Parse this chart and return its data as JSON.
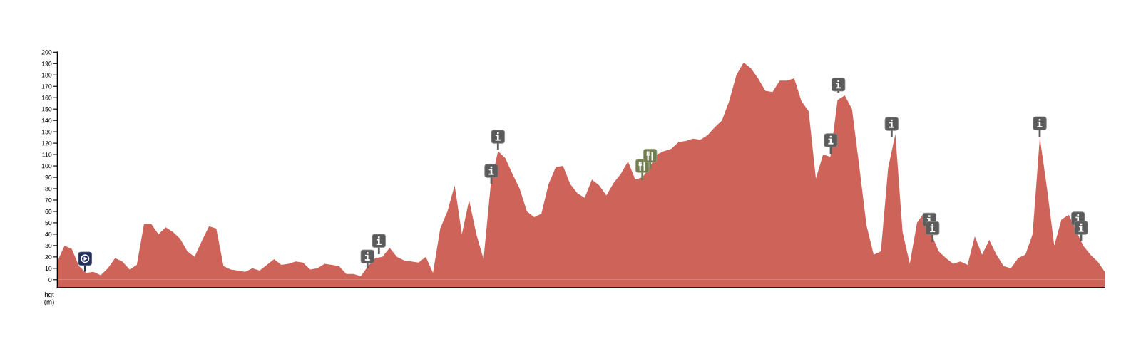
{
  "chart_data": {
    "type": "area",
    "ylabel": "hgt\n(m)",
    "categories": [
      null,
      null,
      null,
      null,
      null,
      null,
      null,
      null,
      null,
      null,
      null,
      null,
      null,
      null,
      null,
      null,
      null,
      null,
      null,
      null,
      null,
      null,
      null,
      null,
      null,
      null,
      null,
      null,
      null,
      null,
      null,
      null,
      null,
      null,
      null,
      null,
      null,
      null,
      null,
      null,
      null,
      null,
      null,
      null,
      null,
      null,
      null,
      null,
      null,
      null,
      null,
      null,
      null,
      null,
      null,
      null,
      null,
      null,
      null,
      null,
      null,
      null,
      null,
      null,
      null,
      null,
      null,
      null,
      null,
      null,
      null,
      null,
      null,
      null,
      null,
      null,
      null,
      null,
      null,
      null,
      null,
      null,
      null,
      null,
      null,
      null,
      null,
      null,
      null,
      null,
      null,
      null,
      null,
      null,
      null,
      null,
      null,
      null,
      null,
      null,
      null,
      null,
      null,
      null,
      null,
      null,
      null,
      null,
      null,
      null,
      null,
      null,
      null,
      null,
      null,
      null,
      null,
      null,
      null,
      null,
      null,
      null,
      null,
      null,
      null,
      null,
      null,
      null,
      null,
      null,
      null,
      null,
      null,
      null,
      null,
      null,
      null,
      null,
      null,
      null,
      null,
      null,
      null,
      null,
      null,
      null
    ],
    "series": [
      {
        "color": "#cd6359",
        "values": [
          16,
          30,
          27,
          12,
          6,
          7,
          4,
          10,
          19,
          16,
          9,
          13,
          49,
          49,
          40,
          46,
          42,
          36,
          25,
          20,
          34,
          47,
          45,
          12,
          9,
          8,
          7,
          10,
          8,
          13,
          18,
          13,
          14,
          16,
          15,
          9,
          10,
          14,
          13,
          12,
          5,
          5,
          3,
          12,
          19,
          20,
          28,
          20,
          17,
          16,
          15,
          20,
          6,
          45,
          60,
          83,
          40,
          70,
          40,
          18,
          84,
          113,
          107,
          93,
          80,
          60,
          55,
          58,
          84,
          99,
          100,
          84,
          76,
          72,
          88,
          83,
          74,
          85,
          93,
          104,
          88,
          90,
          99,
          110,
          113,
          115,
          121,
          122,
          124,
          123,
          127,
          134,
          140,
          157,
          180,
          191,
          186,
          177,
          166,
          165,
          175,
          175,
          177,
          157,
          148,
          89,
          110,
          108,
          158,
          162,
          150,
          100,
          48,
          22,
          25,
          98,
          128,
          42,
          14,
          50,
          59,
          40,
          25,
          19,
          14,
          16,
          13,
          38,
          22,
          35,
          22,
          12,
          10,
          19,
          22,
          40,
          125,
          80,
          30,
          53,
          57,
          null,
          30,
          22,
          16,
          7
        ]
      }
    ],
    "bands": [
      {
        "axis": "y",
        "from": -7,
        "to": 0,
        "color": "#cd6359"
      }
    ],
    "ylim": [
      -7,
      200
    ],
    "yticks": [
      0,
      10,
      20,
      30,
      40,
      50,
      60,
      70,
      80,
      90,
      100,
      110,
      120,
      130,
      140,
      150,
      160,
      170,
      180,
      190,
      200
    ],
    "tick_labels": "y"
  }
}
